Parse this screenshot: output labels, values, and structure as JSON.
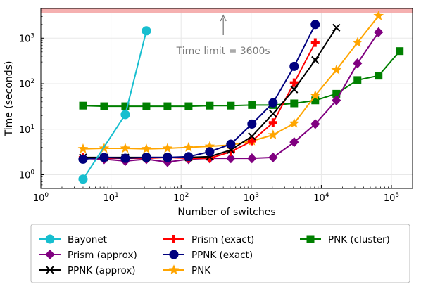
{
  "chart_data": {
    "type": "line",
    "xlabel": "Number of switches",
    "ylabel": "Time (seconds)",
    "x_scale": "log",
    "y_scale": "log",
    "xlim": [
      1,
      200000
    ],
    "ylim": [
      0.5,
      4500
    ],
    "x_ticks": [
      {
        "base": "10",
        "exp": "0",
        "value": 1
      },
      {
        "base": "10",
        "exp": "1",
        "value": 10
      },
      {
        "base": "10",
        "exp": "2",
        "value": 100
      },
      {
        "base": "10",
        "exp": "3",
        "value": 1000
      },
      {
        "base": "10",
        "exp": "4",
        "value": 10000
      },
      {
        "base": "10",
        "exp": "5",
        "value": 100000
      }
    ],
    "y_ticks": [
      {
        "base": "10",
        "exp": "0",
        "value": 1
      },
      {
        "base": "10",
        "exp": "1",
        "value": 10
      },
      {
        "base": "10",
        "exp": "2",
        "value": 100
      },
      {
        "base": "10",
        "exp": "3",
        "value": 1000
      }
    ],
    "grid": true,
    "time_limit": {
      "value": 3600,
      "label": "Time limit = 3600s",
      "color": "#f4a7a7",
      "arrow_x": 400
    },
    "legend_position": "bottom",
    "series": [
      {
        "name": "Bayonet",
        "color": "#17becf",
        "marker": "circle",
        "x": [
          4,
          16,
          32
        ],
        "y": [
          0.8,
          21,
          1450
        ]
      },
      {
        "name": "Prism (approx)",
        "color": "#800080",
        "marker": "diamond",
        "x": [
          4,
          8,
          16,
          32,
          64,
          128,
          256,
          512,
          1024,
          2048,
          4096,
          8192,
          16384,
          32768,
          65536
        ],
        "y": [
          2.3,
          2.2,
          2.0,
          2.2,
          1.9,
          2.2,
          2.3,
          2.3,
          2.3,
          2.4,
          5.2,
          13,
          43,
          280,
          1350
        ]
      },
      {
        "name": "PPNK (approx)",
        "color": "#000000",
        "marker": "x",
        "x": [
          4,
          8,
          16,
          32,
          64,
          128,
          256,
          512,
          1024,
          2048,
          4096,
          8192,
          16384
        ],
        "y": [
          2.4,
          2.4,
          2.4,
          2.4,
          2.4,
          2.4,
          2.5,
          3.5,
          7,
          22,
          75,
          330,
          1700
        ]
      },
      {
        "name": "Prism (exact)",
        "color": "#ff0000",
        "marker": "plus",
        "x": [
          4,
          8,
          16,
          32,
          64,
          128,
          256,
          512,
          1024,
          2048,
          4096,
          8192
        ],
        "y": [
          2.4,
          2.3,
          2.3,
          2.3,
          2.4,
          2.3,
          2.3,
          3.2,
          5.5,
          14,
          105,
          800
        ]
      },
      {
        "name": "PPNK (exact)",
        "color": "#00007f",
        "marker": "circle",
        "x": [
          4,
          8,
          16,
          32,
          64,
          128,
          256,
          512,
          1024,
          2048,
          4096,
          8192
        ],
        "y": [
          2.2,
          2.4,
          2.3,
          2.4,
          2.4,
          2.5,
          3.2,
          4.7,
          13,
          38,
          240,
          2000
        ]
      },
      {
        "name": "PNK",
        "color": "#ffa500",
        "marker": "star",
        "x": [
          4,
          8,
          16,
          32,
          64,
          128,
          256,
          512,
          1024,
          2048,
          4096,
          8192,
          16384,
          32768,
          65536
        ],
        "y": [
          3.7,
          3.8,
          3.8,
          3.7,
          3.8,
          4.0,
          4.2,
          4.5,
          5.5,
          7.5,
          13.5,
          55,
          200,
          800,
          3100
        ]
      },
      {
        "name": "PNK (cluster)",
        "color": "#008000",
        "marker": "square",
        "x": [
          4,
          8,
          16,
          32,
          64,
          128,
          256,
          512,
          1024,
          2048,
          4096,
          8192,
          16384,
          32768,
          65536,
          131072
        ],
        "y": [
          33,
          32,
          32,
          32,
          32,
          32,
          33,
          33,
          34,
          34,
          37,
          43,
          60,
          120,
          150,
          520
        ]
      }
    ]
  }
}
